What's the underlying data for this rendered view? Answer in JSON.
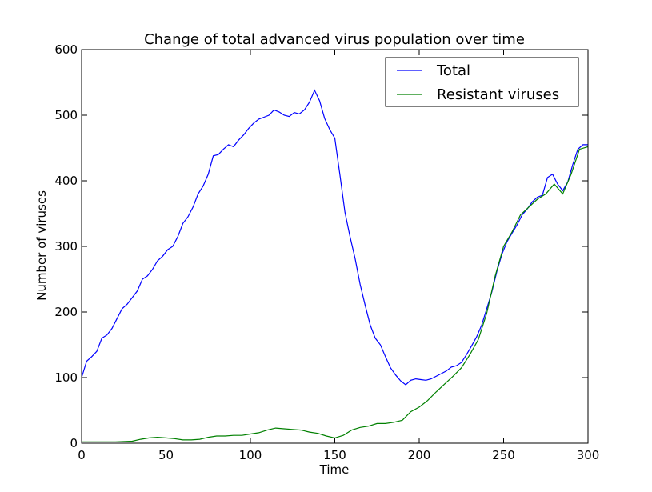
{
  "chart_data": {
    "type": "line",
    "title": "Change of total advanced virus population over time",
    "xlabel": "Time",
    "ylabel": "Number of viruses",
    "xlim": [
      0,
      300
    ],
    "ylim": [
      0,
      600
    ],
    "xticks": [
      0,
      50,
      100,
      150,
      200,
      250,
      300
    ],
    "yticks": [
      0,
      100,
      200,
      300,
      400,
      500,
      600
    ],
    "grid": false,
    "legend": "top-right",
    "series": [
      {
        "name": "Total",
        "color": "#0000ff",
        "points": [
          [
            0,
            100
          ],
          [
            3,
            125
          ],
          [
            6,
            132
          ],
          [
            9,
            140
          ],
          [
            12,
            160
          ],
          [
            15,
            165
          ],
          [
            18,
            175
          ],
          [
            21,
            190
          ],
          [
            24,
            205
          ],
          [
            27,
            212
          ],
          [
            30,
            222
          ],
          [
            33,
            232
          ],
          [
            36,
            250
          ],
          [
            39,
            255
          ],
          [
            42,
            265
          ],
          [
            45,
            278
          ],
          [
            48,
            285
          ],
          [
            51,
            295
          ],
          [
            54,
            300
          ],
          [
            57,
            315
          ],
          [
            60,
            335
          ],
          [
            63,
            345
          ],
          [
            66,
            360
          ],
          [
            69,
            380
          ],
          [
            72,
            392
          ],
          [
            75,
            410
          ],
          [
            78,
            438
          ],
          [
            81,
            440
          ],
          [
            84,
            448
          ],
          [
            87,
            455
          ],
          [
            90,
            452
          ],
          [
            93,
            462
          ],
          [
            96,
            470
          ],
          [
            99,
            480
          ],
          [
            102,
            488
          ],
          [
            105,
            494
          ],
          [
            108,
            497
          ],
          [
            111,
            500
          ],
          [
            114,
            508
          ],
          [
            117,
            505
          ],
          [
            120,
            500
          ],
          [
            123,
            498
          ],
          [
            126,
            504
          ],
          [
            129,
            502
          ],
          [
            132,
            508
          ],
          [
            135,
            520
          ],
          [
            138,
            538
          ],
          [
            141,
            522
          ],
          [
            144,
            495
          ],
          [
            147,
            478
          ],
          [
            150,
            465
          ],
          [
            153,
            410
          ],
          [
            156,
            352
          ],
          [
            159,
            315
          ],
          [
            162,
            282
          ],
          [
            165,
            242
          ],
          [
            168,
            210
          ],
          [
            171,
            180
          ],
          [
            174,
            160
          ],
          [
            177,
            150
          ],
          [
            180,
            132
          ],
          [
            183,
            115
          ],
          [
            186,
            104
          ],
          [
            189,
            95
          ],
          [
            192,
            89
          ],
          [
            195,
            96
          ],
          [
            198,
            98
          ],
          [
            201,
            97
          ],
          [
            204,
            96
          ],
          [
            207,
            98
          ],
          [
            210,
            102
          ],
          [
            213,
            106
          ],
          [
            216,
            110
          ],
          [
            219,
            116
          ],
          [
            222,
            118
          ],
          [
            225,
            123
          ],
          [
            228,
            135
          ],
          [
            231,
            148
          ],
          [
            234,
            162
          ],
          [
            237,
            180
          ],
          [
            240,
            205
          ],
          [
            243,
            230
          ],
          [
            246,
            262
          ],
          [
            249,
            288
          ],
          [
            252,
            307
          ],
          [
            255,
            320
          ],
          [
            258,
            333
          ],
          [
            261,
            348
          ],
          [
            264,
            357
          ],
          [
            267,
            368
          ],
          [
            270,
            375
          ],
          [
            273,
            378
          ],
          [
            276,
            405
          ],
          [
            279,
            410
          ],
          [
            282,
            395
          ],
          [
            285,
            385
          ],
          [
            288,
            398
          ],
          [
            291,
            425
          ],
          [
            294,
            448
          ],
          [
            297,
            455
          ],
          [
            300,
            455
          ]
        ]
      },
      {
        "name": "Resistant viruses",
        "color": "#008000",
        "points": [
          [
            0,
            2
          ],
          [
            10,
            2
          ],
          [
            20,
            2
          ],
          [
            30,
            3
          ],
          [
            35,
            6
          ],
          [
            40,
            8
          ],
          [
            45,
            9
          ],
          [
            50,
            8
          ],
          [
            55,
            7
          ],
          [
            60,
            5
          ],
          [
            65,
            5
          ],
          [
            70,
            6
          ],
          [
            75,
            9
          ],
          [
            80,
            11
          ],
          [
            85,
            11
          ],
          [
            90,
            12
          ],
          [
            95,
            12
          ],
          [
            100,
            14
          ],
          [
            105,
            16
          ],
          [
            110,
            20
          ],
          [
            115,
            23
          ],
          [
            120,
            22
          ],
          [
            125,
            21
          ],
          [
            130,
            20
          ],
          [
            135,
            17
          ],
          [
            140,
            15
          ],
          [
            145,
            11
          ],
          [
            150,
            8
          ],
          [
            155,
            12
          ],
          [
            160,
            20
          ],
          [
            165,
            24
          ],
          [
            170,
            26
          ],
          [
            175,
            30
          ],
          [
            180,
            30
          ],
          [
            185,
            32
          ],
          [
            190,
            35
          ],
          [
            195,
            48
          ],
          [
            200,
            55
          ],
          [
            205,
            65
          ],
          [
            210,
            78
          ],
          [
            215,
            90
          ],
          [
            220,
            102
          ],
          [
            225,
            115
          ],
          [
            230,
            135
          ],
          [
            235,
            158
          ],
          [
            240,
            198
          ],
          [
            245,
            255
          ],
          [
            250,
            300
          ],
          [
            255,
            322
          ],
          [
            260,
            348
          ],
          [
            265,
            360
          ],
          [
            270,
            372
          ],
          [
            275,
            380
          ],
          [
            280,
            395
          ],
          [
            285,
            380
          ],
          [
            290,
            410
          ],
          [
            295,
            448
          ],
          [
            300,
            452
          ]
        ]
      }
    ]
  }
}
